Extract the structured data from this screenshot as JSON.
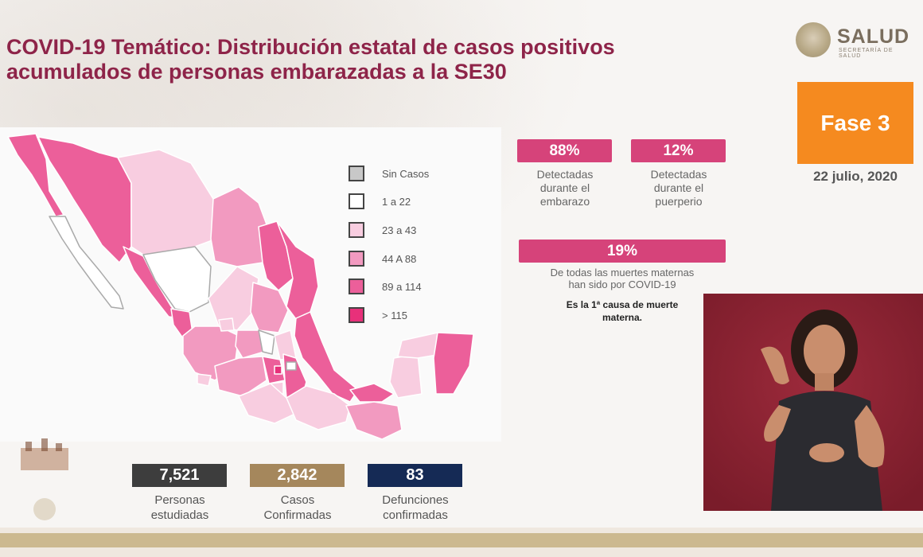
{
  "title": {
    "line1": "COVID-19 Temático: Distribución estatal de casos positivos",
    "line2": "acumulados de personas embarazadas a la SE30"
  },
  "logo": {
    "text": "SALUD",
    "subtext": "SECRETARÍA DE SALUD"
  },
  "phase": {
    "label": "Fase 3",
    "color": "#f58a1f"
  },
  "date": "22 julio, 2020",
  "legend": [
    {
      "label": "Sin Casos",
      "color": "#c8c8c8"
    },
    {
      "label": "1 a 22",
      "color": "#ffffff"
    },
    {
      "label": "23 a 43",
      "color": "#f8cde0"
    },
    {
      "label": "44 A 88",
      "color": "#f29ac0"
    },
    {
      "label": "89 a 114",
      "color": "#ec5f9a"
    },
    {
      "label": "> 115",
      "color": "#e8307a"
    }
  ],
  "stats": {
    "pregnancy": {
      "value": "88%",
      "caption": [
        "Detectadas",
        "durante el",
        "embarazo"
      ]
    },
    "postpartum": {
      "value": "12%",
      "caption": [
        "Detectadas",
        "durante el",
        "puerperio"
      ]
    },
    "maternal_deaths": {
      "value": "19%",
      "caption": [
        "De todas las muertes maternas",
        "han sido por COVID-19"
      ],
      "bold": [
        "Es la 1ª causa de muerte",
        "materna."
      ]
    },
    "accent_color": "#d6437a"
  },
  "counters": [
    {
      "value": "7,521",
      "caption": [
        "Personas",
        "estudiadas"
      ],
      "color": "#3d3d3d"
    },
    {
      "value": "2,842",
      "caption": [
        "Casos",
        "Confirmadas"
      ],
      "color": "#a5875c"
    },
    {
      "value": "83",
      "caption": [
        "Defunciones",
        "confirmadas"
      ],
      "color": "#152a55"
    }
  ]
}
